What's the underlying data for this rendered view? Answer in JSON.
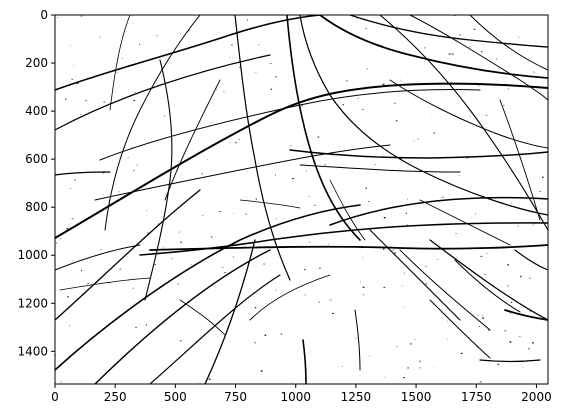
{
  "chart_data": {
    "type": "image",
    "title": "",
    "xlabel": "",
    "ylabel": "",
    "xlim": [
      0,
      2048
    ],
    "ylim": [
      1536,
      0
    ],
    "x_ticks": [
      0,
      250,
      500,
      750,
      1000,
      1250,
      1500,
      1750,
      2000
    ],
    "x_tick_labels": [
      "0",
      "250",
      "500",
      "750",
      "1000",
      "1250",
      "1500",
      "1750",
      "2000"
    ],
    "y_ticks": [
      0,
      200,
      400,
      600,
      800,
      1000,
      1200,
      1400
    ],
    "y_tick_labels": [
      "0",
      "200",
      "400",
      "600",
      "800",
      "1000",
      "1200",
      "1400"
    ],
    "grid": false,
    "colors": {
      "background": "#ffffff",
      "foreground": "#000000"
    },
    "image_content": "binary-crack-pattern-icon"
  }
}
